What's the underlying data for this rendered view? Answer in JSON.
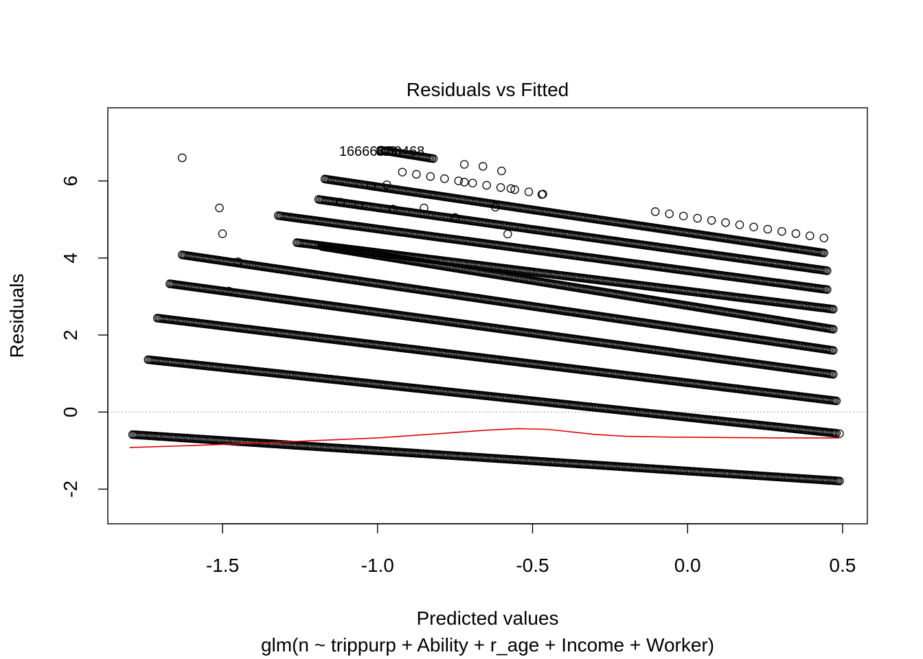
{
  "chart_data": {
    "type": "scatter",
    "title": "Residuals vs Fitted",
    "xlabel": "Predicted values",
    "subtitle": "glm(n ~ trippurp + Ability + r_age + Income + Worker)",
    "ylabel": "Residuals",
    "xlim": [
      -1.87,
      0.58
    ],
    "ylim": [
      -2.9,
      7.9
    ],
    "x_ticks": [
      "-1.5",
      "-1.0",
      "-0.5",
      "0.0",
      "0.5"
    ],
    "y_ticks": [
      "-2",
      "0",
      "2",
      "4",
      "6"
    ],
    "grid": false,
    "reference_line": {
      "y": 0,
      "style": "dotted",
      "color": "#b3b3b3"
    },
    "point_color": "#000000",
    "smooth_color": "#e00000",
    "annotations": [
      {
        "text": "166663",
        "x": -1.05,
        "y": 6.78
      },
      {
        "text": "82",
        "x": -0.98,
        "y": 6.78
      },
      {
        "text": "3",
        "x": -0.95,
        "y": 6.78
      },
      {
        "text": "80468",
        "x": -0.91,
        "y": 6.78
      }
    ],
    "bands": [
      {
        "x_start": -1.79,
        "x_end": 0.49,
        "y_start": -0.585,
        "y_end": -1.79,
        "ends_only": false
      },
      {
        "x_start": -1.74,
        "x_end": 0.48,
        "y_start": 1.36,
        "y_end": -0.55,
        "ends_only": false
      },
      {
        "x_start": -1.71,
        "x_end": 0.48,
        "y_start": 2.44,
        "y_end": 0.29,
        "ends_only": false
      },
      {
        "x_start": -1.67,
        "x_end": 0.47,
        "y_start": 3.33,
        "y_end": 0.98,
        "ends_only": false
      },
      {
        "x_start": -1.63,
        "x_end": 0.47,
        "y_start": 4.08,
        "y_end": 1.6,
        "ends_only": false
      },
      {
        "x_start": -1.18,
        "x_end": 0.47,
        "y_start": 4.3,
        "y_end": 2.15,
        "ends_only": false
      },
      {
        "x_start": -1.26,
        "x_end": 0.47,
        "y_start": 4.4,
        "y_end": 2.67,
        "ends_only": false
      },
      {
        "x_start": -1.32,
        "x_end": 0.45,
        "y_start": 5.1,
        "y_end": 3.18,
        "ends_only": false
      },
      {
        "x_start": -1.19,
        "x_end": 0.45,
        "y_start": 5.52,
        "y_end": 3.67,
        "ends_only": false
      },
      {
        "x_start": -1.17,
        "x_end": 0.44,
        "y_start": 6.05,
        "y_end": 4.13,
        "ends_only": false
      },
      {
        "x_start": -0.92,
        "x_end": 0.44,
        "y_start": 6.23,
        "y_end": 4.52,
        "ends_only": true
      },
      {
        "x_start": -0.99,
        "x_end": -0.82,
        "y_start": 6.8,
        "y_end": 6.58,
        "ends_only": false
      }
    ],
    "outliers": [
      {
        "x": -1.63,
        "y": 6.6
      },
      {
        "x": -1.51,
        "y": 5.3
      },
      {
        "x": -1.5,
        "y": 4.63
      },
      {
        "x": -1.45,
        "y": 3.9
      },
      {
        "x": -1.48,
        "y": 3.14
      },
      {
        "x": -1.12,
        "y": 5.45
      },
      {
        "x": -1.06,
        "y": 5.37
      },
      {
        "x": -1.02,
        "y": 5.87
      },
      {
        "x": -0.72,
        "y": 5.97
      },
      {
        "x": -0.6,
        "y": 6.26
      },
      {
        "x": -0.57,
        "y": 5.8
      },
      {
        "x": -0.58,
        "y": 4.62
      },
      {
        "x": -0.72,
        "y": 6.43
      },
      {
        "x": -0.66,
        "y": 6.38
      },
      {
        "x": -0.85,
        "y": 5.3
      },
      {
        "x": -0.75,
        "y": 5.05
      },
      {
        "x": -0.95,
        "y": 5.27
      },
      {
        "x": -0.97,
        "y": 5.9
      },
      {
        "x": -0.62,
        "y": 5.32
      },
      {
        "x": -0.47,
        "y": 5.65
      },
      {
        "x": 0.49,
        "y": -0.56
      }
    ],
    "smooth_line": {
      "x": [
        -1.8,
        -1.6,
        -1.4,
        -1.2,
        -1.0,
        -0.8,
        -0.65,
        -0.55,
        -0.45,
        -0.3,
        -0.2,
        -0.05,
        0.1,
        0.3,
        0.49
      ],
      "y": [
        -0.92,
        -0.87,
        -0.81,
        -0.74,
        -0.67,
        -0.56,
        -0.47,
        -0.43,
        -0.45,
        -0.58,
        -0.63,
        -0.65,
        -0.66,
        -0.67,
        -0.67
      ]
    }
  }
}
